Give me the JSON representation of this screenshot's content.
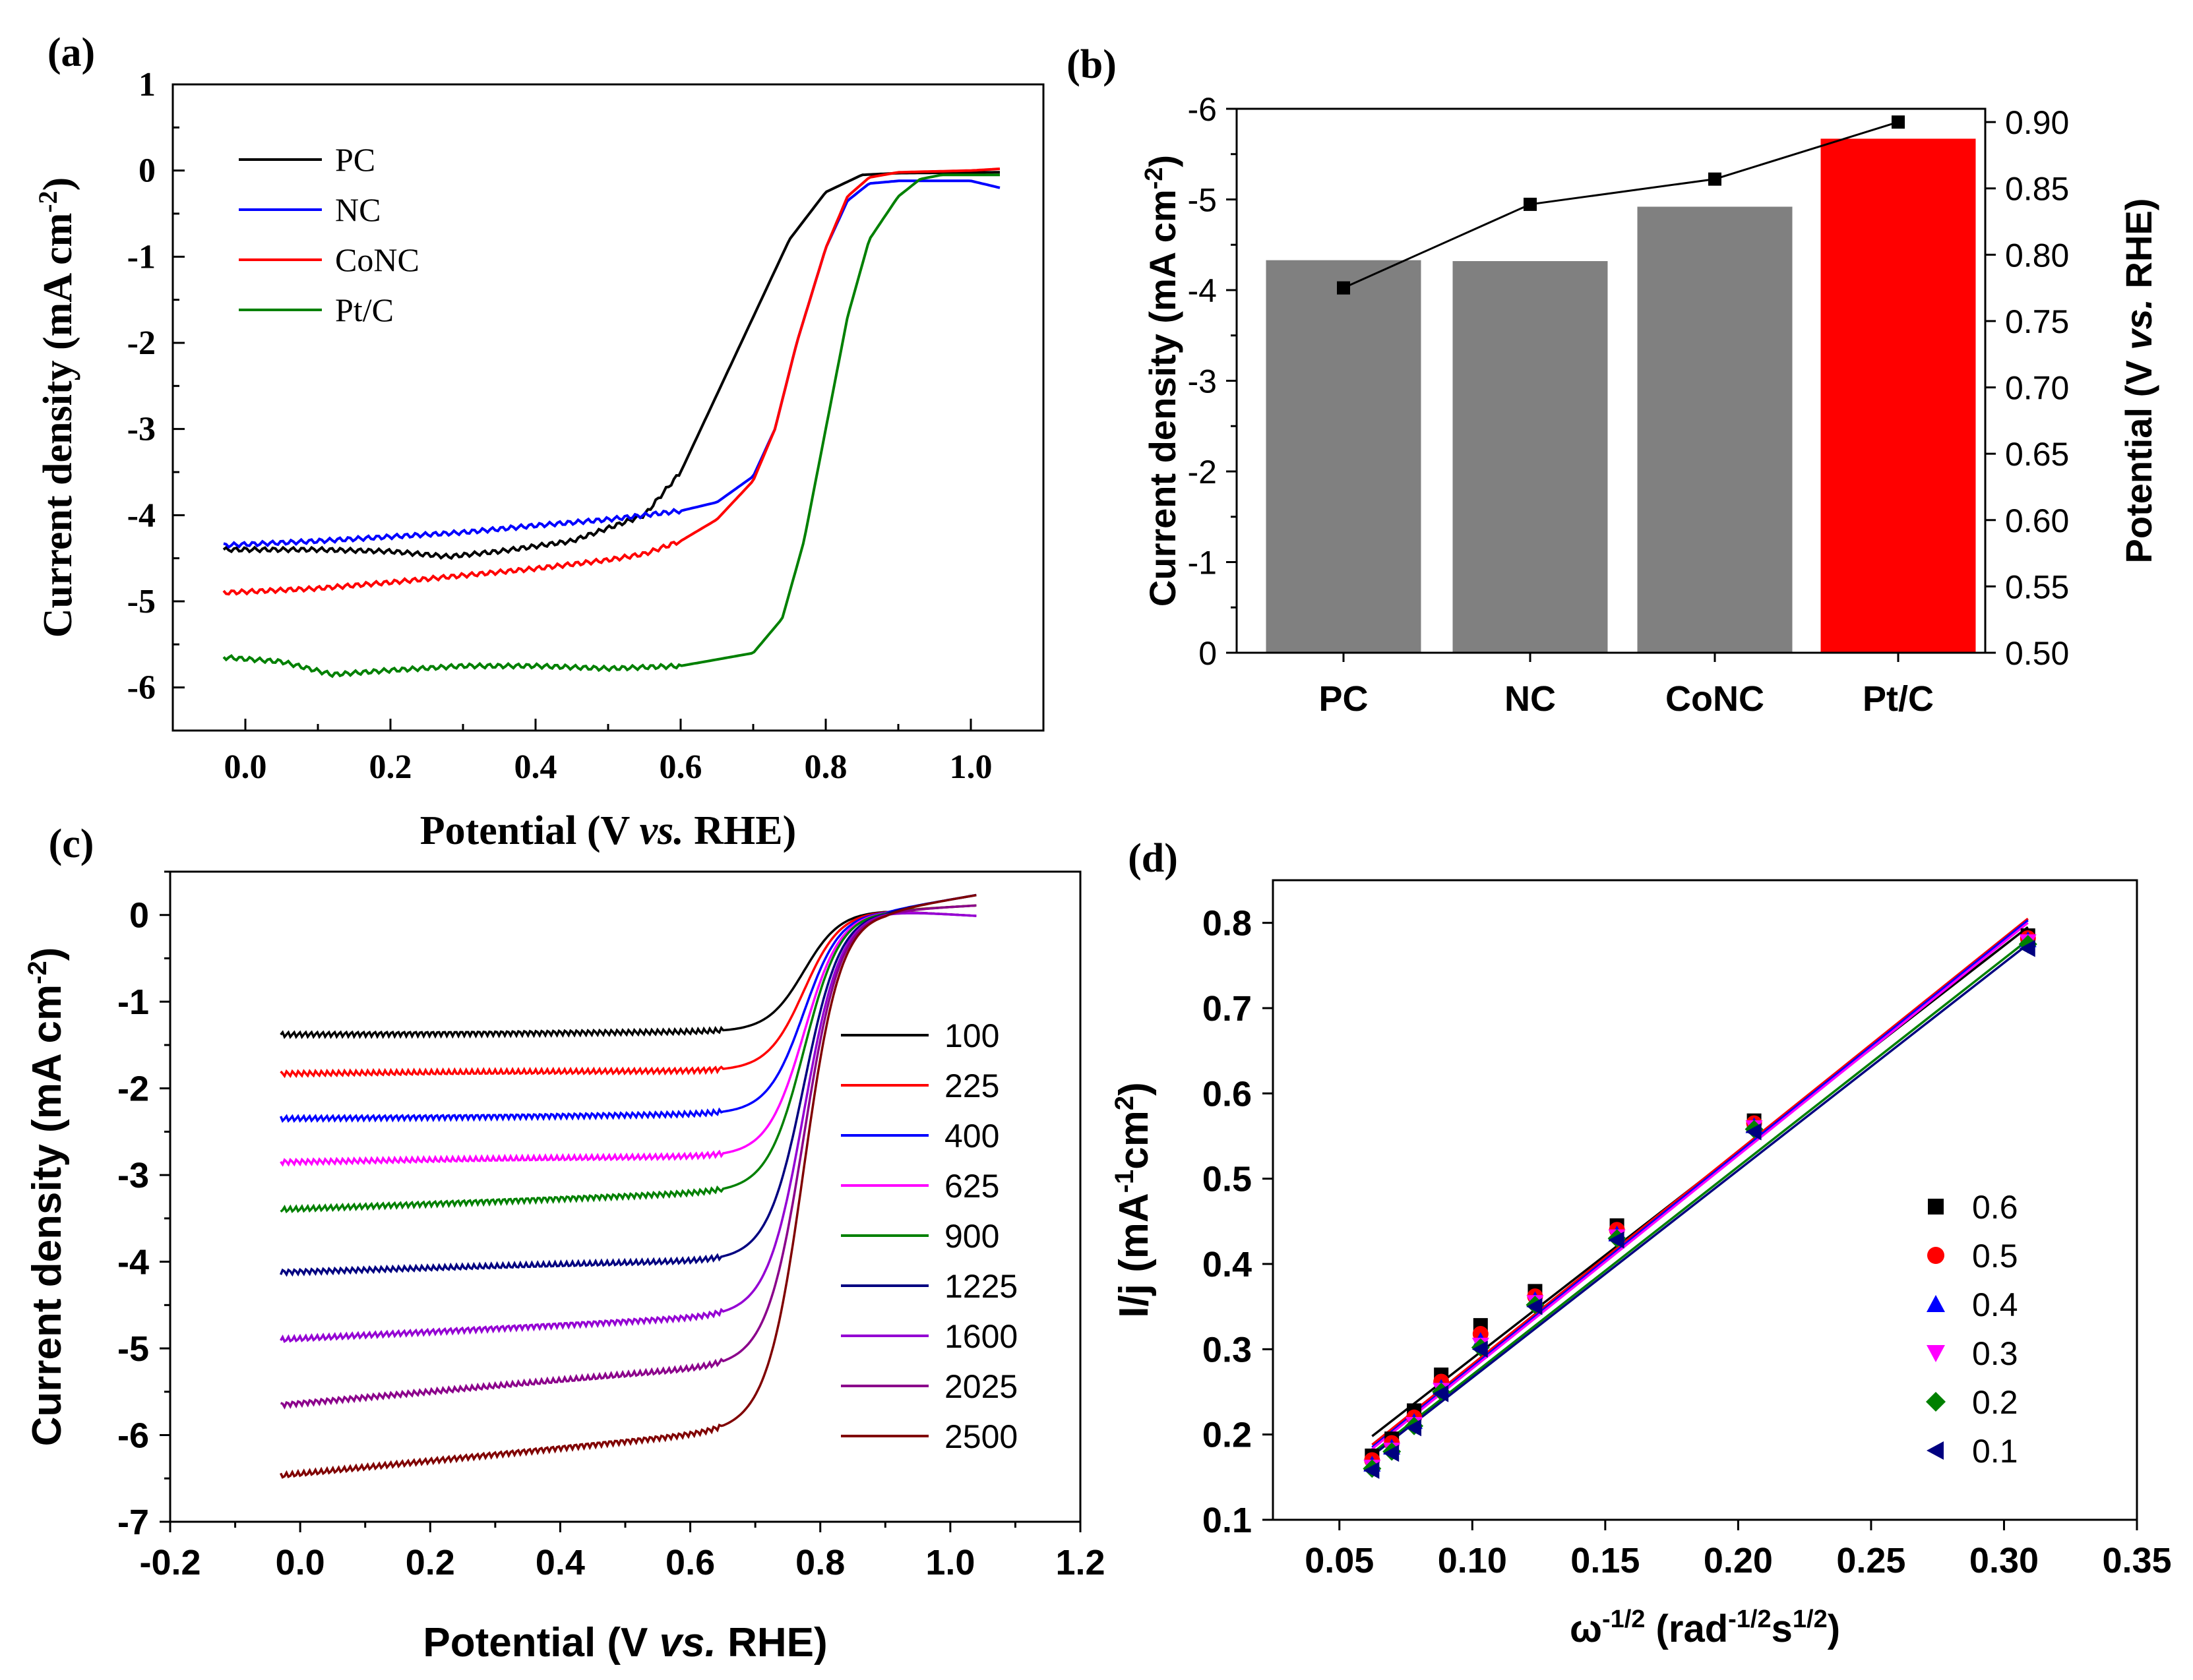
{
  "chart_data": [
    {
      "id": "a",
      "panel_label": "(a)",
      "type": "line",
      "xlabel_main": "Potential (V ",
      "xlabel_italic": "vs.",
      "xlabel_end": " RHE)",
      "ylabel_main": "Current density (mA cm",
      "ylabel_sup": "-2",
      "ylabel_end": ")",
      "xlim": [
        -0.1,
        1.1
      ],
      "ylim": [
        -6.5,
        1
      ],
      "x_ticks": [
        0.0,
        0.2,
        0.4,
        0.6,
        0.8,
        1.0
      ],
      "x_tick_labels": [
        "0.0",
        "0.2",
        "0.4",
        "0.6",
        "0.8",
        "1.0"
      ],
      "y_ticks": [
        1,
        0,
        -1,
        -2,
        -3,
        -4,
        -5,
        -6
      ],
      "y_tick_labels": [
        "1",
        "0",
        "-1",
        "-2",
        "-3",
        "-4",
        "-5",
        "-6"
      ],
      "legend_position": "top-left",
      "series": [
        {
          "name": "PC",
          "color": "#000000",
          "x": [
            -0.03,
            0.1,
            0.2,
            0.28,
            0.35,
            0.45,
            0.55,
            0.6,
            0.65,
            0.7,
            0.75,
            0.8,
            0.85,
            0.9,
            1.04
          ],
          "y": [
            -4.4,
            -4.4,
            -4.42,
            -4.48,
            -4.42,
            -4.3,
            -4.0,
            -3.5,
            -2.6,
            -1.7,
            -0.8,
            -0.25,
            -0.05,
            -0.03,
            -0.02
          ]
        },
        {
          "name": "NC",
          "color": "#0000ff",
          "x": [
            -0.03,
            0.1,
            0.2,
            0.3,
            0.4,
            0.5,
            0.6,
            0.65,
            0.7,
            0.73,
            0.76,
            0.8,
            0.83,
            0.86,
            0.9,
            1.0,
            1.04
          ],
          "y": [
            -4.35,
            -4.3,
            -4.25,
            -4.2,
            -4.12,
            -4.05,
            -3.95,
            -3.85,
            -3.55,
            -3.0,
            -2.0,
            -0.9,
            -0.35,
            -0.15,
            -0.12,
            -0.12,
            -0.2
          ]
        },
        {
          "name": "CoNC",
          "color": "#ff0000",
          "x": [
            -0.03,
            0.1,
            0.2,
            0.3,
            0.4,
            0.5,
            0.55,
            0.6,
            0.65,
            0.7,
            0.73,
            0.76,
            0.8,
            0.83,
            0.86,
            0.9,
            1.0,
            1.04
          ],
          "y": [
            -4.9,
            -4.85,
            -4.78,
            -4.7,
            -4.62,
            -4.52,
            -4.45,
            -4.3,
            -4.05,
            -3.6,
            -3.0,
            -2.0,
            -0.9,
            -0.3,
            -0.08,
            -0.02,
            0.0,
            0.02
          ]
        },
        {
          "name": "Pt/C",
          "color": "#008000",
          "x": [
            -0.03,
            0.05,
            0.12,
            0.2,
            0.3,
            0.4,
            0.5,
            0.6,
            0.7,
            0.74,
            0.77,
            0.8,
            0.83,
            0.86,
            0.9,
            0.93,
            0.96,
            1.04
          ],
          "y": [
            -5.65,
            -5.7,
            -5.85,
            -5.8,
            -5.75,
            -5.75,
            -5.78,
            -5.75,
            -5.6,
            -5.2,
            -4.3,
            -3.0,
            -1.7,
            -0.8,
            -0.3,
            -0.1,
            -0.05,
            -0.05
          ]
        }
      ]
    },
    {
      "id": "b",
      "panel_label": "(b)",
      "type": "bar",
      "categories": [
        "PC",
        "NC",
        "CoNC",
        "Pt/C"
      ],
      "bar_values": [
        -4.33,
        -4.32,
        -4.92,
        -5.67
      ],
      "bar_colors": [
        "#808080",
        "#808080",
        "#808080",
        "#ff0000"
      ],
      "line_values": [
        0.775,
        0.838,
        0.857,
        0.9
      ],
      "ylabel_main": "Current density (mA cm",
      "ylabel_sup": "-2",
      "ylabel_end": ")",
      "y2label_main": "Potential (V ",
      "y2label_italic": "vs.",
      "y2label_end": " RHE)",
      "ylim": [
        0,
        -6
      ],
      "y2lim": [
        0.5,
        0.91
      ],
      "y_ticks": [
        0,
        -1,
        -2,
        -3,
        -4,
        -5,
        -6
      ],
      "y_tick_labels": [
        "0",
        "-1",
        "-2",
        "-3",
        "-4",
        "-5",
        "-6"
      ],
      "y2_ticks": [
        0.5,
        0.55,
        0.6,
        0.65,
        0.7,
        0.75,
        0.8,
        0.85,
        0.9
      ],
      "y2_tick_labels": [
        "0.50",
        "0.55",
        "0.60",
        "0.65",
        "0.70",
        "0.75",
        "0.80",
        "0.85",
        "0.90"
      ]
    },
    {
      "id": "c",
      "panel_label": "(c)",
      "type": "line",
      "xlabel_main": "Potential (V ",
      "xlabel_italic": "vs.",
      "xlabel_end": " RHE)",
      "ylabel_main": "Current density (mA cm",
      "ylabel_sup": "-2",
      "ylabel_end": ")",
      "xlim": [
        -0.2,
        1.2
      ],
      "ylim": [
        -7,
        0.5
      ],
      "x_ticks": [
        -0.2,
        0.0,
        0.2,
        0.4,
        0.6,
        0.8,
        1.0,
        1.2
      ],
      "x_tick_labels": [
        "-0.2",
        "0.0",
        "0.2",
        "0.4",
        "0.6",
        "0.8",
        "1.0",
        "1.2"
      ],
      "y_ticks": [
        0,
        -1,
        -2,
        -3,
        -4,
        -5,
        -6,
        -7
      ],
      "y_tick_labels": [
        "0",
        "-1",
        "-2",
        "-3",
        "-4",
        "-5",
        "-6",
        "-7"
      ],
      "legend_position": "middle-right",
      "series": [
        {
          "name": "100",
          "color": "#000000",
          "plateau": -1.38,
          "slope": 0.05
        },
        {
          "name": "225",
          "color": "#ff0000",
          "plateau": -1.83,
          "slope": 0.05
        },
        {
          "name": "400",
          "color": "#0000ff",
          "plateau": -2.35,
          "slope": 0.08
        },
        {
          "name": "625",
          "color": "#ff00ff",
          "plateau": -2.85,
          "slope": 0.1
        },
        {
          "name": "900",
          "color": "#008000",
          "plateau": -3.4,
          "slope": 0.3
        },
        {
          "name": "1225",
          "color": "#000080",
          "plateau": -4.12,
          "slope": 0.2
        },
        {
          "name": "1600",
          "color": "#9400d3",
          "plateau": -4.9,
          "slope": 0.4
        },
        {
          "name": "2025",
          "color": "#8b008b",
          "plateau": -5.65,
          "slope": 0.65
        },
        {
          "name": "2500",
          "color": "#800000",
          "plateau": -6.47,
          "slope": 0.75
        }
      ]
    },
    {
      "id": "d",
      "panel_label": "(d)",
      "type": "scatter",
      "xlabel_main": "ω",
      "xlabel_sup": "-1/2",
      "xlabel_mid": " (rad",
      "xlabel_sup2": "-1/2",
      "xlabel_mid2": "s",
      "xlabel_sup3": "1/2",
      "xlabel_end": ")",
      "ylabel_main": "I/j (mA",
      "ylabel_sup": "-1",
      "ylabel_mid": "cm",
      "ylabel_sup2": "2",
      "ylabel_end": ")",
      "xlim": [
        0.025,
        0.35
      ],
      "ylim": [
        0.1,
        0.85
      ],
      "x_ticks": [
        0.05,
        0.1,
        0.15,
        0.2,
        0.25,
        0.3,
        0.35
      ],
      "x_tick_labels": [
        "0.05",
        "0.10",
        "0.15",
        "0.20",
        "0.25",
        "0.30",
        "0.35"
      ],
      "y_ticks": [
        0.1,
        0.2,
        0.3,
        0.4,
        0.5,
        0.6,
        0.7,
        0.8
      ],
      "y_tick_labels": [
        "0.1",
        "0.2",
        "0.3",
        "0.4",
        "0.5",
        "0.6",
        "0.7",
        "0.8"
      ],
      "x": [
        0.0623,
        0.0697,
        0.0781,
        0.0883,
        0.1031,
        0.1236,
        0.1544,
        0.206,
        0.309
      ],
      "legend_position": "bottom-right",
      "series": [
        {
          "name": "0.6",
          "color": "#000000",
          "marker": "square",
          "y": [
            0.175,
            0.195,
            0.228,
            0.27,
            0.328,
            0.368,
            0.445,
            0.568,
            0.785
          ],
          "fit": [
            0.198,
            0.795
          ]
        },
        {
          "name": "0.5",
          "color": "#ff0000",
          "marker": "circle",
          "y": [
            0.17,
            0.19,
            0.22,
            0.262,
            0.318,
            0.362,
            0.44,
            0.565,
            0.782
          ],
          "fit": [
            0.188,
            0.805
          ]
        },
        {
          "name": "0.4",
          "color": "#0000ff",
          "marker": "triangle-up",
          "y": [
            0.165,
            0.185,
            0.215,
            0.255,
            0.31,
            0.358,
            0.435,
            0.562,
            0.78
          ],
          "fit": [
            0.185,
            0.803
          ]
        },
        {
          "name": "0.3",
          "color": "#ff00ff",
          "marker": "triangle-down",
          "y": [
            0.162,
            0.182,
            0.212,
            0.252,
            0.305,
            0.355,
            0.432,
            0.56,
            0.778
          ],
          "fit": [
            0.183,
            0.8
          ]
        },
        {
          "name": "0.2",
          "color": "#008000",
          "marker": "diamond",
          "y": [
            0.16,
            0.18,
            0.21,
            0.25,
            0.302,
            0.352,
            0.43,
            0.558,
            0.775
          ],
          "fit": [
            0.178,
            0.78
          ]
        },
        {
          "name": "0.1",
          "color": "#000080",
          "marker": "triangle-left",
          "y": [
            0.158,
            0.178,
            0.208,
            0.248,
            0.3,
            0.35,
            0.428,
            0.555,
            0.77
          ],
          "fit": [
            0.175,
            0.775
          ]
        }
      ]
    }
  ]
}
